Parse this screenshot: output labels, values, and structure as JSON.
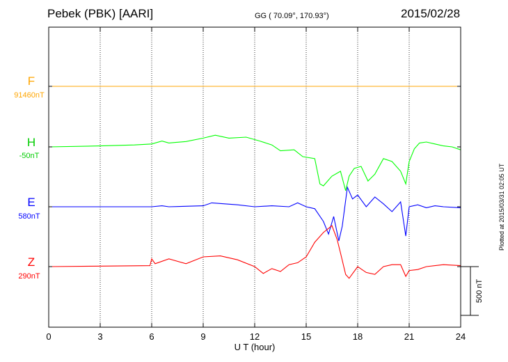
{
  "header": {
    "station": "Pebek (PBK)  [AARI]",
    "coords": "GG ( 70.09°, 170.93°)",
    "date": "2015/02/28"
  },
  "footer": {
    "plotted": "Plotted at 2015/03/31 02:05 UT"
  },
  "chart_data": {
    "type": "line",
    "title": "Pebek (PBK)  [AARI]",
    "xlabel": "U T (hour)",
    "ylabel": "",
    "xlim": [
      0,
      24
    ],
    "x_ticks": [
      "0",
      "3",
      "6",
      "9",
      "12",
      "15",
      "18",
      "21",
      "24"
    ],
    "grid": true,
    "scale_bar_label": "500 nT",
    "scale_bar_nT": 500,
    "series": [
      {
        "name": "F",
        "baseline_label": "91460nT",
        "color": "#ffa500",
        "t": [
          0,
          24
        ],
        "v": [
          0,
          0
        ]
      },
      {
        "name": "H",
        "baseline_label": "-50nT",
        "color": "#00ff00",
        "t": [
          0,
          3,
          5,
          6,
          6.6,
          7,
          8,
          9,
          9.7,
          10.5,
          11.5,
          12.3,
          13,
          13.5,
          14.3,
          14.8,
          15.5,
          15.8,
          16,
          16.5,
          17,
          17.3,
          17.5,
          17.8,
          18.2,
          18.6,
          19,
          19.5,
          20,
          20.5,
          20.8,
          21,
          21.3,
          21.6,
          22,
          22.5,
          23,
          23.5,
          24
        ],
        "v": [
          0,
          10,
          20,
          30,
          60,
          40,
          55,
          90,
          120,
          90,
          100,
          60,
          20,
          -40,
          -30,
          -100,
          -120,
          -380,
          -400,
          -300,
          -250,
          -450,
          -300,
          -220,
          -200,
          -350,
          -280,
          -120,
          -150,
          -250,
          -380,
          -150,
          -20,
          40,
          50,
          30,
          10,
          0,
          -30
        ]
      },
      {
        "name": "E",
        "baseline_label": "580nT",
        "color": "#0000ff",
        "t": [
          0,
          6,
          6.6,
          7,
          9,
          9.5,
          11,
          12,
          13,
          14,
          14.5,
          15,
          15.5,
          16,
          16.3,
          16.6,
          16.9,
          17.1,
          17.4,
          17.7,
          18,
          18.5,
          19,
          19.5,
          20,
          20.5,
          20.8,
          21,
          21.5,
          22,
          22.5,
          23,
          24
        ],
        "v": [
          0,
          0,
          10,
          0,
          10,
          40,
          20,
          0,
          10,
          0,
          40,
          0,
          -20,
          -150,
          -280,
          -100,
          -350,
          -200,
          200,
          80,
          120,
          0,
          100,
          30,
          -50,
          50,
          -300,
          0,
          20,
          -10,
          10,
          0,
          -10
        ]
      },
      {
        "name": "Z",
        "baseline_label": "290nT",
        "color": "#ff0000",
        "t": [
          0,
          3,
          5.9,
          6,
          6.2,
          7,
          8,
          9,
          10,
          11,
          12,
          12.5,
          13,
          13.5,
          14,
          14.5,
          15,
          15.5,
          16,
          16.5,
          16.8,
          17,
          17.3,
          17.5,
          18,
          18.5,
          19,
          19.5,
          20,
          20.5,
          20.8,
          21,
          21.5,
          22,
          23,
          24
        ],
        "v": [
          0,
          5,
          10,
          80,
          30,
          80,
          30,
          100,
          110,
          70,
          0,
          -70,
          -20,
          -50,
          20,
          40,
          100,
          250,
          350,
          420,
          280,
          140,
          -80,
          -120,
          0,
          -60,
          -80,
          0,
          20,
          20,
          -100,
          -40,
          -30,
          0,
          20,
          10
        ]
      }
    ]
  }
}
